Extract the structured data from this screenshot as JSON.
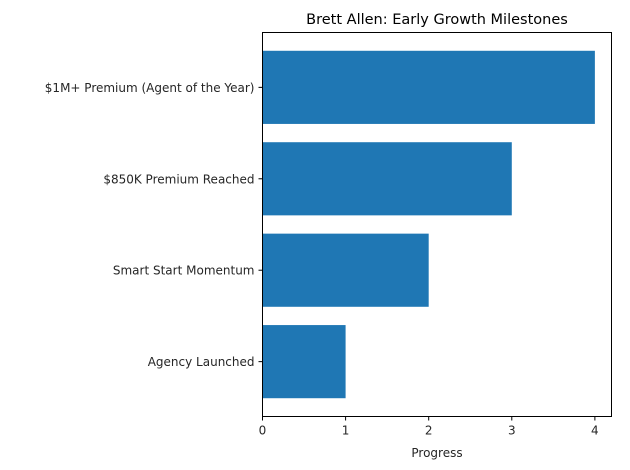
{
  "chart_data": {
    "type": "bar",
    "orientation": "horizontal",
    "title": "Brett Allen: Early Growth Milestones",
    "xlabel": "Progress",
    "ylabel": "",
    "categories": [
      "Agency Launched",
      "Smart Start Momentum",
      "$850K Premium Reached",
      "$1M+ Premium (Agent of the Year)"
    ],
    "values": [
      1,
      2,
      3,
      4
    ],
    "xlim": [
      0,
      4.2
    ],
    "xticks": [
      0,
      1,
      2,
      3,
      4
    ],
    "grid": false,
    "legend": null,
    "bar_color": "#1f77b4"
  }
}
